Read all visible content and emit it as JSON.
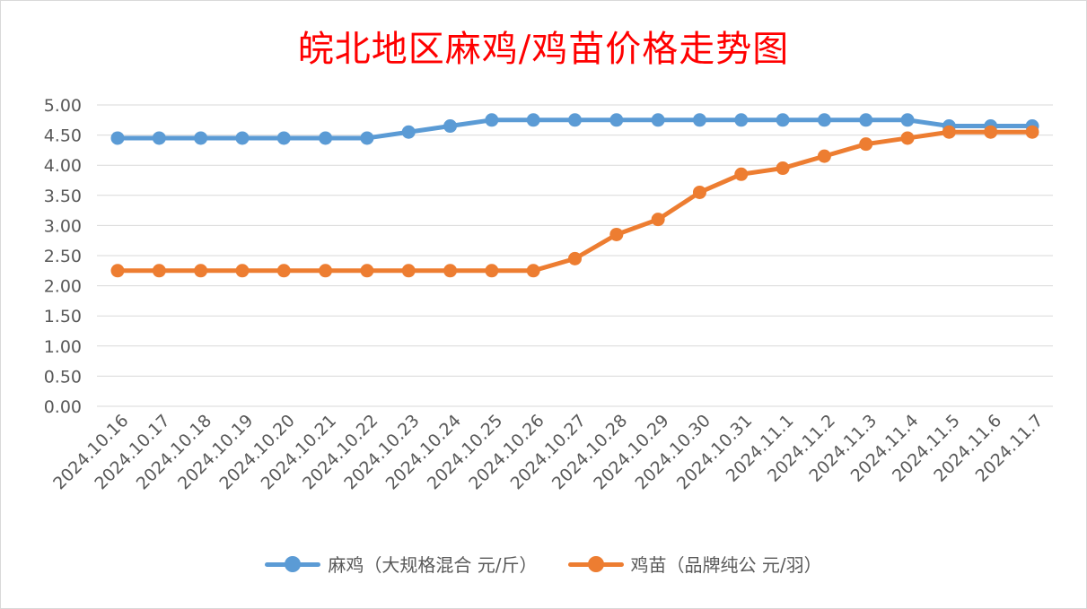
{
  "chart_data": {
    "type": "line",
    "title": "皖北地区麻鸡/鸡苗价格走势图",
    "categories": [
      "2024.10.16",
      "2024.10.17",
      "2024.10.18",
      "2024.10.19",
      "2024.10.20",
      "2024.10.21",
      "2024.10.22",
      "2024.10.23",
      "2024.10.24",
      "2024.10.25",
      "2024.10.26",
      "2024.10.27",
      "2024.10.28",
      "2024.10.29",
      "2024.10.30",
      "2024.10.31",
      "2024.11.1",
      "2024.11.2",
      "2024.11.3",
      "2024.11.4",
      "2024.11.5",
      "2024.11.6",
      "2024.11.7"
    ],
    "series": [
      {
        "name": "麻鸡（大规格混合 元/斤）",
        "color": "#5b9bd5",
        "values": [
          4.45,
          4.45,
          4.45,
          4.45,
          4.45,
          4.45,
          4.45,
          4.55,
          4.65,
          4.75,
          4.75,
          4.75,
          4.75,
          4.75,
          4.75,
          4.75,
          4.75,
          4.75,
          4.75,
          4.75,
          4.65,
          4.65,
          4.65
        ]
      },
      {
        "name": "鸡苗（品牌纯公 元/羽）",
        "color": "#ed7d31",
        "values": [
          2.25,
          2.25,
          2.25,
          2.25,
          2.25,
          2.25,
          2.25,
          2.25,
          2.25,
          2.25,
          2.25,
          2.45,
          2.85,
          3.1,
          3.55,
          3.85,
          3.95,
          4.15,
          4.35,
          4.45,
          4.55,
          4.55,
          4.55
        ]
      }
    ],
    "yticks": [
      "0.00",
      "0.50",
      "1.00",
      "1.50",
      "2.00",
      "2.50",
      "3.00",
      "3.50",
      "4.00",
      "4.50",
      "5.00"
    ],
    "ylim": [
      0,
      5
    ],
    "xlabel": "",
    "ylabel": "",
    "grid": true,
    "legend": "bottom"
  }
}
